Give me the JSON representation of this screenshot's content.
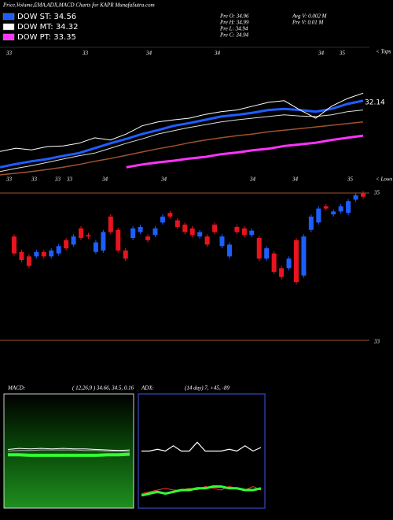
{
  "header": {
    "title": "Price,Volume,EMA,ADX,MACD Charts for KAPR MunafaSutra.com",
    "legend": [
      {
        "label": "DOW ST: 34.56",
        "color": "#1e5eff"
      },
      {
        "label": "DOW MT: 34.32",
        "color": "#ffffff"
      },
      {
        "label": "DOW PT: 33.35",
        "color": "#ff33ff"
      }
    ],
    "stats": [
      "Pre  O: 34.96",
      "Pre  H: 34.99",
      "Pre  L: 34.94",
      "Pre  C: 34.94",
      "Avg  V: 0.002  M",
      "Pre  V: 0.01  M"
    ]
  },
  "chart_data": [
    {
      "type": "line",
      "ylim": [
        32.6,
        35.2
      ],
      "annotation": "32.14",
      "tops_label": "< Tops",
      "lows_label": "< Lows",
      "top_labels": [
        "33",
        "33",
        "34",
        "34",
        "34",
        "35"
      ],
      "bottom_labels": [
        "33",
        "33",
        "33",
        "33",
        "34",
        "34",
        "34",
        "34",
        "35"
      ],
      "series": [
        {
          "color": "#a0522d",
          "line_width": 1.5,
          "values": [
            32.86,
            32.89,
            32.92,
            32.96,
            33.0,
            33.05,
            33.11,
            33.16,
            33.22,
            33.28,
            33.34,
            33.39,
            33.45,
            33.5,
            33.54,
            33.58,
            33.61,
            33.65,
            33.68,
            33.71,
            33.74,
            33.77,
            33.8,
            33.83
          ]
        },
        {
          "color": "#dddddd",
          "line_width": 1,
          "values": [
            32.92,
            32.98,
            33.03,
            33.09,
            33.15,
            33.21,
            33.26,
            33.35,
            33.44,
            33.52,
            33.61,
            33.67,
            33.73,
            33.78,
            33.83,
            33.87,
            33.9,
            33.93,
            33.96,
            33.94,
            33.93,
            33.96,
            34.02,
            34.05
          ]
        },
        {
          "color": "#ff33ff",
          "line_width": 3,
          "values": [
            null,
            null,
            null,
            null,
            null,
            null,
            null,
            null,
            33.0,
            33.05,
            33.09,
            33.12,
            33.16,
            33.19,
            33.24,
            33.27,
            33.31,
            33.34,
            33.39,
            33.42,
            33.45,
            33.5,
            33.54,
            33.58
          ]
        },
        {
          "color": "#1e5eff",
          "line_width": 3,
          "values": [
            33.0,
            33.06,
            33.11,
            33.15,
            33.21,
            33.26,
            33.35,
            33.44,
            33.52,
            33.61,
            33.68,
            33.76,
            33.81,
            33.87,
            33.93,
            33.96,
            34.0,
            34.05,
            34.07,
            34.05,
            34.02,
            34.07,
            34.16,
            34.22
          ]
        },
        {
          "color": "#ffffff",
          "line_width": 1,
          "values": [
            33.29,
            33.35,
            33.32,
            33.38,
            33.39,
            33.44,
            33.54,
            33.5,
            33.61,
            33.76,
            33.83,
            33.87,
            33.9,
            33.97,
            34.02,
            34.05,
            34.12,
            34.19,
            34.22,
            34.05,
            33.9,
            34.12,
            34.26,
            34.36
          ]
        }
      ]
    },
    {
      "type": "candlestick",
      "ylim": [
        33,
        35
      ],
      "yticks": [
        33,
        35
      ],
      "up_color": "#1e5eff",
      "down_color": "#e8141e",
      "ohlc": [
        [
          34.41,
          34.44,
          34.15,
          34.18
        ],
        [
          34.2,
          34.23,
          34.06,
          34.09
        ],
        [
          34.14,
          34.17,
          33.98,
          34.01
        ],
        [
          34.14,
          34.23,
          34.11,
          34.2
        ],
        [
          34.2,
          34.23,
          34.11,
          34.14
        ],
        [
          34.14,
          34.25,
          34.11,
          34.22
        ],
        [
          34.18,
          34.31,
          34.15,
          34.28
        ],
        [
          34.36,
          34.39,
          34.22,
          34.25
        ],
        [
          34.3,
          34.44,
          34.27,
          34.41
        ],
        [
          34.52,
          34.55,
          34.36,
          34.39
        ],
        [
          34.43,
          34.46,
          34.38,
          34.41
        ],
        [
          34.2,
          34.36,
          34.17,
          34.33
        ],
        [
          34.22,
          34.5,
          34.19,
          34.47
        ],
        [
          34.68,
          34.71,
          34.44,
          34.47
        ],
        [
          34.5,
          34.53,
          34.19,
          34.22
        ],
        [
          34.22,
          34.25,
          34.08,
          34.11
        ],
        [
          34.39,
          34.55,
          34.36,
          34.52
        ],
        [
          34.47,
          34.57,
          34.44,
          34.54
        ],
        [
          34.41,
          34.44,
          34.33,
          34.36
        ],
        [
          34.43,
          34.55,
          34.4,
          34.52
        ],
        [
          34.6,
          34.71,
          34.57,
          34.68
        ],
        [
          34.73,
          34.76,
          34.65,
          34.68
        ],
        [
          34.63,
          34.66,
          34.51,
          34.54
        ],
        [
          34.57,
          34.6,
          34.44,
          34.47
        ],
        [
          34.52,
          34.55,
          34.4,
          34.43
        ],
        [
          34.41,
          34.5,
          34.38,
          34.47
        ],
        [
          34.41,
          34.44,
          34.27,
          34.3
        ],
        [
          34.57,
          34.6,
          34.44,
          34.47
        ],
        [
          34.28,
          34.44,
          34.25,
          34.41
        ],
        [
          34.14,
          34.33,
          34.11,
          34.3
        ],
        [
          34.54,
          34.57,
          34.44,
          34.47
        ],
        [
          34.52,
          34.55,
          34.4,
          34.43
        ],
        [
          34.43,
          34.52,
          34.4,
          34.49
        ],
        [
          34.39,
          34.42,
          34.08,
          34.11
        ],
        [
          34.11,
          34.28,
          34.08,
          34.25
        ],
        [
          34.18,
          34.21,
          33.9,
          33.93
        ],
        [
          33.98,
          34.01,
          33.83,
          33.86
        ],
        [
          33.98,
          34.14,
          33.95,
          34.11
        ],
        [
          34.36,
          34.39,
          33.76,
          33.79
        ],
        [
          33.88,
          34.44,
          33.85,
          34.41
        ],
        [
          34.5,
          34.71,
          34.47,
          34.68
        ],
        [
          34.6,
          34.82,
          34.57,
          34.79
        ],
        [
          34.82,
          34.85,
          34.76,
          34.79
        ],
        [
          34.71,
          34.78,
          34.68,
          34.75
        ],
        [
          34.75,
          34.85,
          34.72,
          34.82
        ],
        [
          34.73,
          34.92,
          34.7,
          34.89
        ],
        [
          34.91,
          35.0,
          34.88,
          34.97
        ],
        [
          35.0,
          35.03,
          34.92,
          34.95
        ]
      ]
    },
    {
      "type": "line",
      "label": "MACD:",
      "params": "( 12,26,9 ) 34.66,  34.5,  0.16",
      "ylim": [
        -1,
        1
      ],
      "series": [
        {
          "color": "#33ff33",
          "line_width": 4,
          "values": [
            -0.07,
            -0.07,
            -0.08,
            -0.08,
            -0.08,
            -0.08,
            -0.08,
            -0.08,
            -0.08,
            -0.07,
            -0.07,
            -0.06
          ]
        },
        {
          "color": "#aaaaaa",
          "line_width": 1,
          "values": [
            0.0,
            0.01,
            0.01,
            0.02,
            0.02,
            0.02,
            0.02,
            0.01,
            0.01,
            0.0,
            0.0,
            -0.01
          ]
        },
        {
          "color": "#ffffff",
          "line_width": 1,
          "values": [
            0.03,
            0.05,
            0.04,
            0.05,
            0.04,
            0.05,
            0.04,
            0.04,
            0.03,
            0.02,
            0.01,
            0.02
          ]
        }
      ]
    },
    {
      "type": "line",
      "label": "ADX:",
      "params": "(14  day) 7, +45, -89",
      "ylim": [
        0,
        60
      ],
      "series": [
        {
          "color": "#ffffff",
          "line_width": 1.2,
          "values": [
            30,
            30,
            31,
            30,
            33,
            30,
            30,
            35,
            30,
            30,
            30,
            31,
            30,
            33,
            30,
            32
          ]
        },
        {
          "color": "#ff3333",
          "line_width": 1,
          "values": [
            6,
            7,
            8,
            9,
            8,
            8,
            9,
            8,
            10,
            9,
            8,
            10,
            9,
            8,
            10,
            8
          ]
        },
        {
          "color": "#33ff33",
          "line_width": 3,
          "values": [
            5,
            6,
            7,
            6,
            7,
            8,
            8,
            9,
            9,
            10,
            10,
            9,
            9,
            8,
            8,
            9
          ]
        }
      ]
    }
  ]
}
